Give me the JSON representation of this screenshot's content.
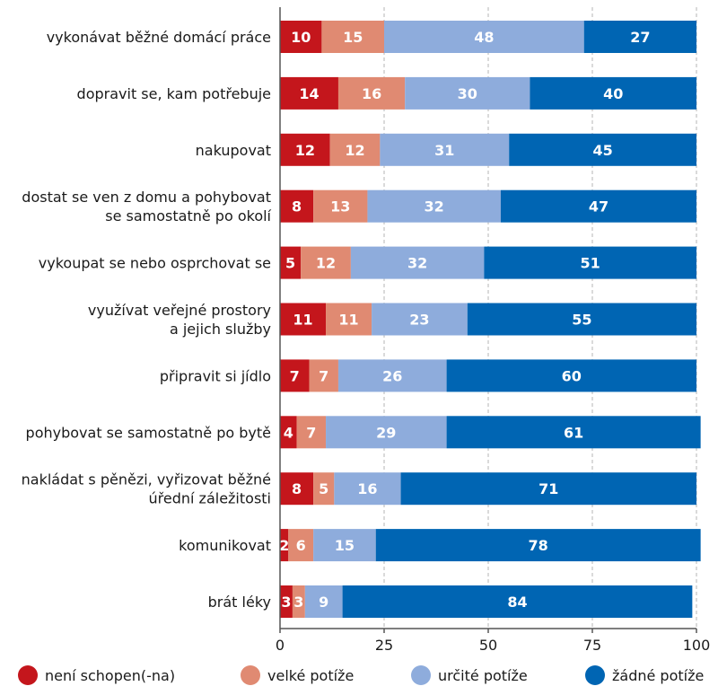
{
  "chart_data": {
    "type": "bar",
    "orientation": "horizontal",
    "stacked": true,
    "categories": [
      "vykonávat běžné domácí práce",
      "dopravit se, kam potřebuje",
      "nakupovat",
      "dostat se ven z domu a pohybovat se samostatně po okolí",
      "vykoupat se nebo osprchovat se",
      "využívat veřejné prostory a jejich služby",
      "připravit si jídlo",
      "pohybovat se samostatně po bytě",
      "nakládat s pěnězi, vyřizovat běžné úřední záležitosti",
      "komunikovat",
      "brát léky"
    ],
    "category_lines": [
      [
        "vykonávat běžné domácí práce"
      ],
      [
        "dopravit se, kam potřebuje"
      ],
      [
        "nakupovat"
      ],
      [
        "dostat se ven z domu a pohybovat",
        "se samostatně po okolí"
      ],
      [
        "vykoupat se nebo osprchovat se"
      ],
      [
        "využívat veřejné prostory",
        "a jejich služby"
      ],
      [
        "připravit si jídlo"
      ],
      [
        "pohybovat se samostatně po bytě"
      ],
      [
        "nakládat s pěnězi, vyřizovat běžné",
        "úřední záležitosti"
      ],
      [
        "komunikovat"
      ],
      [
        "brát léky"
      ]
    ],
    "series": [
      {
        "name": "není schopen(-na)",
        "color": "#c4161c",
        "values": [
          10,
          14,
          12,
          8,
          5,
          11,
          7,
          4,
          8,
          2,
          3
        ]
      },
      {
        "name": "velké potíže",
        "color": "#e08a72",
        "values": [
          15,
          16,
          12,
          13,
          12,
          11,
          7,
          7,
          5,
          6,
          3
        ]
      },
      {
        "name": "určité potíže",
        "color": "#8eacdc",
        "values": [
          48,
          30,
          31,
          32,
          32,
          23,
          26,
          29,
          16,
          15,
          9
        ]
      },
      {
        "name": "žádné potíže",
        "color": "#0065b3",
        "values": [
          27,
          40,
          45,
          47,
          51,
          55,
          60,
          61,
          71,
          78,
          84
        ]
      }
    ],
    "xlim": [
      0,
      100
    ],
    "xticks": [
      0,
      25,
      50,
      75,
      100
    ],
    "grid": "vertical dashed",
    "legend": "bottom"
  }
}
